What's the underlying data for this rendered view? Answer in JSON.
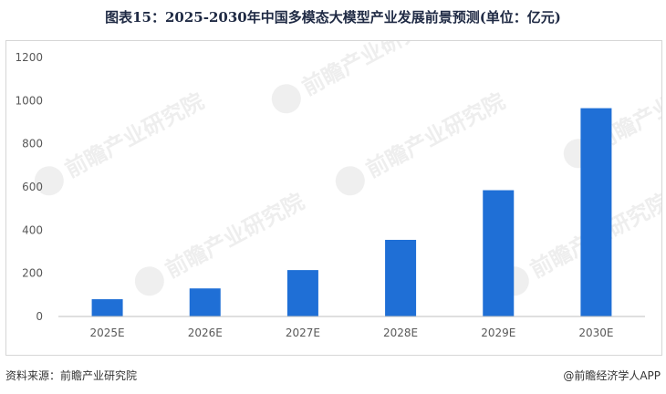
{
  "title": "图表15：2025-2030年中国多模态大模型产业发展前景预测(单位：亿元)",
  "source": "资料来源：前瞻产业研究院",
  "brand": "@前瞻经济学人APP",
  "watermark": "前瞻产业研究院",
  "colors": {
    "bar": "#1f6fd6",
    "axis": "#bfbfbf",
    "text": "#595959"
  },
  "chart_data": {
    "type": "bar",
    "categories": [
      "2025E",
      "2026E",
      "2027E",
      "2028E",
      "2029E",
      "2030E"
    ],
    "values": [
      80,
      130,
      215,
      355,
      585,
      965
    ],
    "ylim": [
      0,
      1200
    ],
    "yticks": [
      0,
      200,
      400,
      600,
      800,
      1000,
      1200
    ],
    "grid": false,
    "legend": "none"
  }
}
